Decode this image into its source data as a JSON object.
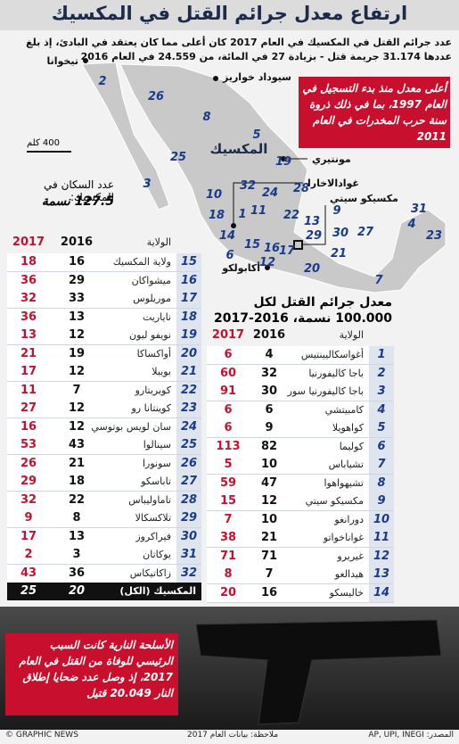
{
  "header": {
    "title": "ارتفاع معدل جرائم القتل في المكسيك",
    "subtitle": "عدد جرائم القتل في المكسيك في العام 2017 كان أعلى مما كان يعتقد في البادئ، إذ بلغ عددها 31.174 جريمة قتل - بزيادة 27 في المائة، من 24.559 في العام 2016"
  },
  "callouts": {
    "record": "أعلى معدل منذ بدء التسجيل في العام 1997، بما في ذلك ذروة سنة حرب المخدرات في العام 2011",
    "firearms": "الأسلحة النارية كانت السبب الرئيسي للوفاة من القتل في العام 2017، إذ وصل عدد ضحايا إطلاق النار 20.049 قتيل"
  },
  "population": {
    "label": "عدد السكان في المكسيك:",
    "value": "127.5",
    "unit": "نسمة"
  },
  "map": {
    "country": "المكسيك",
    "scale": "400 كلم",
    "cities": [
      "تيخوانا",
      "سيوداد خواريز",
      "مونتيري",
      "غوادالاخارا",
      "مكسيكو سيتي",
      "أكابولكو"
    ],
    "states": [
      "2",
      "26",
      "8",
      "5",
      "25",
      "19",
      "28",
      "32",
      "10",
      "24",
      "11",
      "22",
      "1",
      "18",
      "14",
      "13",
      "29",
      "15",
      "16",
      "12",
      "6",
      "17",
      "20",
      "27",
      "30",
      "21",
      "9",
      "4",
      "23",
      "31",
      "7",
      "3"
    ]
  },
  "rate_table": {
    "title": "معدل جرائم القتل لكل 100.000 نسمة، 2016-2017",
    "columns": [
      "الولاية",
      "2016",
      "2017"
    ],
    "rows": [
      [
        "1",
        "أغواسكاليينتيس",
        "4",
        "6"
      ],
      [
        "2",
        "باجا كاليفورنيا",
        "32",
        "60"
      ],
      [
        "3",
        "باجا كاليفورنيا سور",
        "30",
        "91"
      ],
      [
        "4",
        "كامبيتشي",
        "6",
        "6"
      ],
      [
        "5",
        "كواهويلا",
        "9",
        "6"
      ],
      [
        "6",
        "كوليما",
        "82",
        "113"
      ],
      [
        "7",
        "تشياباس",
        "10",
        "5"
      ],
      [
        "8",
        "تشيهواهوا",
        "47",
        "59"
      ],
      [
        "9",
        "مكسيكو سيتي",
        "12",
        "15"
      ],
      [
        "10",
        "دورانغو",
        "10",
        "7"
      ],
      [
        "11",
        "غواناخواتو",
        "21",
        "38"
      ],
      [
        "12",
        "غيريرو",
        "71",
        "71"
      ],
      [
        "13",
        "هيدالغو",
        "7",
        "8"
      ],
      [
        "14",
        "خاليسكو",
        "16",
        "20"
      ]
    ]
  },
  "rate_table_2": {
    "columns": [
      "الولاية",
      "2016",
      "2017"
    ],
    "rows": [
      [
        "15",
        "ولاية المكسيك",
        "16",
        "18"
      ],
      [
        "16",
        "ميشواكان",
        "29",
        "36"
      ],
      [
        "17",
        "موريلوس",
        "33",
        "32"
      ],
      [
        "18",
        "ناياريت",
        "13",
        "36"
      ],
      [
        "19",
        "نويفو ليون",
        "12",
        "13"
      ],
      [
        "20",
        "أواكساكا",
        "19",
        "21"
      ],
      [
        "21",
        "بويبلا",
        "12",
        "17"
      ],
      [
        "22",
        "كويريتارو",
        "7",
        "11"
      ],
      [
        "23",
        "كوينتانا رو",
        "12",
        "27"
      ],
      [
        "24",
        "سان لويس بوتوسي",
        "12",
        "16"
      ],
      [
        "25",
        "سينالوا",
        "43",
        "53"
      ],
      [
        "26",
        "سونورا",
        "21",
        "26"
      ],
      [
        "27",
        "تاباسكو",
        "18",
        "29"
      ],
      [
        "28",
        "تاماوليباس",
        "22",
        "32"
      ],
      [
        "29",
        "تلاكسكالا",
        "8",
        "9"
      ],
      [
        "30",
        "فيراكروز",
        "13",
        "17"
      ],
      [
        "31",
        "يوكاتان",
        "3",
        "2"
      ],
      [
        "32",
        "زاكاتيكاس",
        "36",
        "43"
      ]
    ],
    "total": [
      "المكسيك (الكل)",
      "20",
      "25"
    ]
  },
  "footer": {
    "source": "المصدر: AP, UPI, INEGI",
    "note": "ملاحظة: بيانات العام 2017",
    "credit": "© GRAPHIC NEWS"
  }
}
